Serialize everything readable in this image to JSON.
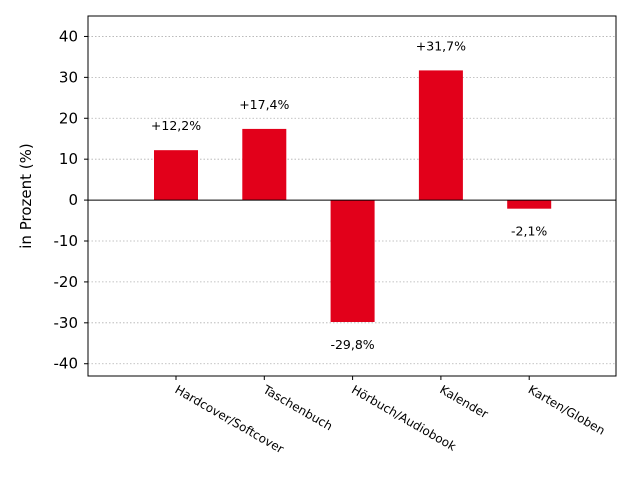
{
  "chart_data": {
    "type": "bar",
    "categories": [
      "Hardcover/Softcover",
      "Taschenbuch",
      "Hörbuch/Audiobook",
      "Kalender",
      "Karten/Globen"
    ],
    "values": [
      12.2,
      17.4,
      -29.8,
      31.7,
      -2.1
    ],
    "data_labels": [
      "+12,2%",
      "+17,4%",
      "-29,8%",
      "+31,7%",
      "-2,1%"
    ],
    "title": "",
    "xlabel": "",
    "ylabel": "in Prozent (%)",
    "ylim": [
      -43,
      45
    ],
    "yticks": [
      40,
      30,
      20,
      10,
      0,
      -10,
      -20,
      -30,
      -40
    ],
    "grid": true,
    "colors": {
      "bar": "#e2001a",
      "grid": "#b0b0b0",
      "axis": "#000000"
    }
  }
}
